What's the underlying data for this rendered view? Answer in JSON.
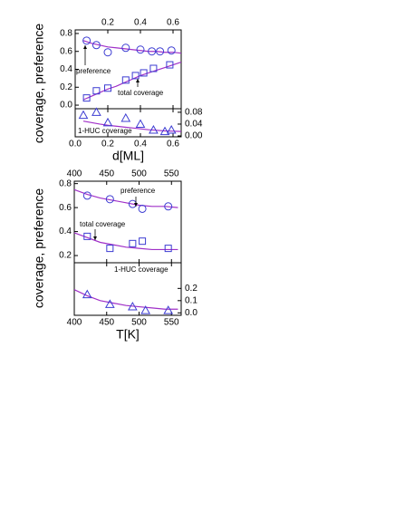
{
  "chart_data": [
    {
      "type": "scatter",
      "ylabel": "coverage, preference",
      "xaxis": "top",
      "yaxis": "left",
      "xlim": [
        0,
        0.65
      ],
      "xticks": [
        0.2,
        0.4,
        0.6
      ],
      "ylim": [
        -0.04,
        0.84
      ],
      "yticks": [
        {
          "value": 0,
          "label": "0.0"
        },
        0.2,
        0.4,
        0.6,
        0.8
      ],
      "annotations": [
        "preference",
        "total coverage"
      ],
      "series": [
        {
          "style": "line",
          "color": "#a030c8",
          "x": [
            0.05,
            0.1,
            0.15,
            0.2,
            0.25,
            0.3,
            0.35,
            0.4,
            0.45,
            0.5,
            0.55,
            0.6,
            0.65
          ],
          "values": [
            0.72,
            0.69,
            0.67,
            0.65,
            0.64,
            0.63,
            0.62,
            0.61,
            0.6,
            0.6,
            0.59,
            0.59,
            0.58
          ]
        },
        {
          "style": "line",
          "color": "#a030c8",
          "x": [
            0.05,
            0.1,
            0.15,
            0.2,
            0.25,
            0.3,
            0.35,
            0.4,
            0.45,
            0.5,
            0.55,
            0.6,
            0.65
          ],
          "values": [
            0.06,
            0.1,
            0.14,
            0.18,
            0.21,
            0.25,
            0.29,
            0.33,
            0.36,
            0.39,
            0.42,
            0.45,
            0.48
          ]
        },
        {
          "marker": "circle",
          "color": "#3c3cd2",
          "x": [
            0.07,
            0.13,
            0.2,
            0.31,
            0.4,
            0.47,
            0.52,
            0.59
          ],
          "values": [
            0.72,
            0.67,
            0.59,
            0.64,
            0.62,
            0.6,
            0.6,
            0.61
          ]
        },
        {
          "marker": "square",
          "color": "#3c3cd2",
          "x": [
            0.07,
            0.13,
            0.2,
            0.31,
            0.37,
            0.42,
            0.48,
            0.58
          ],
          "values": [
            0.08,
            0.16,
            0.19,
            0.28,
            0.33,
            0.36,
            0.41,
            0.45
          ]
        }
      ]
    },
    {
      "type": "scatter",
      "xlabel": "d[ML]",
      "xaxis": "bottom",
      "yaxis": "right",
      "xlim": [
        0,
        0.65
      ],
      "xticks": [
        {
          "value": 0,
          "label": "0.0"
        },
        0.2,
        0.4,
        0.6
      ],
      "ylim": [
        -0.003,
        0.092
      ],
      "yticks": [
        {
          "value": 0,
          "label": "0.00"
        },
        0.04,
        0.08
      ],
      "annotations": [
        "1-HUC coverage"
      ],
      "series": [
        {
          "style": "line",
          "color": "#a030c8",
          "x": [
            0.05,
            0.1,
            0.15,
            0.2,
            0.25,
            0.3,
            0.35,
            0.4,
            0.45,
            0.5,
            0.55,
            0.6,
            0.65
          ],
          "values": [
            0.05,
            0.045,
            0.04,
            0.036,
            0.033,
            0.03,
            0.027,
            0.024,
            0.021,
            0.019,
            0.017,
            0.016,
            0.015
          ]
        },
        {
          "marker": "triangle",
          "color": "#3c3cd2",
          "x": [
            0.05,
            0.13,
            0.2,
            0.31,
            0.4,
            0.48,
            0.55,
            0.59
          ],
          "values": [
            0.07,
            0.08,
            0.045,
            0.06,
            0.04,
            0.02,
            0.015,
            0.02
          ]
        }
      ]
    },
    {
      "type": "scatter",
      "ylabel": "coverage, preference",
      "xaxis": "top",
      "yaxis": "left",
      "xlim": [
        400,
        565
      ],
      "xticks": [
        400,
        450,
        500,
        550
      ],
      "ylim": [
        0.14,
        0.82
      ],
      "yticks": [
        0.2,
        0.4,
        0.6,
        0.8
      ],
      "annotations": [
        "preference",
        "total coverage"
      ],
      "series": [
        {
          "style": "line",
          "color": "#a030c8",
          "x": [
            400,
            420,
            440,
            460,
            480,
            500,
            520,
            540,
            560
          ],
          "values": [
            0.75,
            0.71,
            0.68,
            0.66,
            0.64,
            0.62,
            0.61,
            0.61,
            0.6
          ]
        },
        {
          "style": "line",
          "color": "#a030c8",
          "x": [
            400,
            420,
            440,
            460,
            480,
            500,
            520,
            540,
            560
          ],
          "values": [
            0.39,
            0.35,
            0.31,
            0.29,
            0.27,
            0.26,
            0.25,
            0.25,
            0.25
          ]
        },
        {
          "marker": "circle",
          "color": "#3c3cd2",
          "x": [
            420,
            455,
            490,
            505,
            545
          ],
          "values": [
            0.7,
            0.67,
            0.63,
            0.59,
            0.61
          ]
        },
        {
          "marker": "square",
          "color": "#3c3cd2",
          "x": [
            420,
            455,
            490,
            505,
            545
          ],
          "values": [
            0.36,
            0.26,
            0.3,
            0.32,
            0.26
          ]
        }
      ]
    },
    {
      "type": "scatter",
      "xlabel": "T[K]",
      "xaxis": "bottom",
      "yaxis": "right",
      "xlim": [
        400,
        565
      ],
      "xticks": [
        400,
        450,
        500,
        550
      ],
      "ylim": [
        -0.02,
        0.41
      ],
      "yticks": [
        {
          "value": 0,
          "label": "0.0"
        },
        0.1,
        0.2
      ],
      "annotations": [
        "1-HUC coverage"
      ],
      "series": [
        {
          "style": "line",
          "color": "#a030c8",
          "x": [
            400,
            420,
            440,
            460,
            480,
            500,
            520,
            540,
            560
          ],
          "values": [
            0.19,
            0.14,
            0.1,
            0.08,
            0.06,
            0.05,
            0.04,
            0.03,
            0.03
          ]
        },
        {
          "marker": "triangle",
          "color": "#3c3cd2",
          "x": [
            420,
            455,
            490,
            510,
            545
          ],
          "values": [
            0.15,
            0.07,
            0.05,
            0.02,
            0.02
          ]
        }
      ]
    }
  ]
}
